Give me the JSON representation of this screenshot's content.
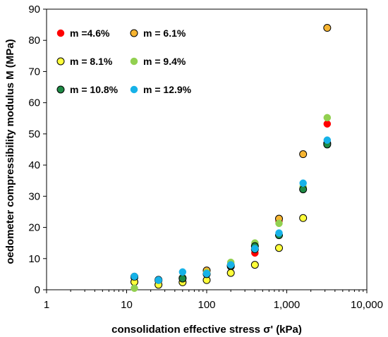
{
  "chart_data": {
    "type": "scatter",
    "xlabel": "consolidation effective stress σ' (kPa)",
    "ylabel": "oedometer compressibility modulus M  (MPa)",
    "x_scale": "log",
    "xlim": [
      1,
      10000
    ],
    "ylim": [
      0,
      90
    ],
    "x_ticks": [
      1,
      10,
      100,
      1000,
      10000
    ],
    "x_tick_labels": [
      "1",
      "10",
      "100",
      "1,000",
      "10,000"
    ],
    "y_ticks": [
      0,
      10,
      20,
      30,
      40,
      50,
      60,
      70,
      80,
      90
    ],
    "y_tick_labels": [
      "0",
      "10",
      "20",
      "30",
      "40",
      "50",
      "60",
      "70",
      "80",
      "90"
    ],
    "grid": false,
    "legend_position": "top-left",
    "series": [
      {
        "name": "m =4.6%",
        "color": "#ff0000",
        "stroke": "#ff0000",
        "x": [
          12.5,
          25,
          50,
          100,
          200,
          400,
          800,
          1600,
          3200
        ],
        "y": [
          4.2,
          3.2,
          3.5,
          5.8,
          8.0,
          11.8,
          22.0,
          32.5,
          53.2
        ]
      },
      {
        "name": "m = 6.1%",
        "color": "#f6b431",
        "stroke": "#000000",
        "x": [
          12.5,
          25,
          50,
          100,
          200,
          400,
          800,
          1600,
          3200
        ],
        "y": [
          4.0,
          3.0,
          3.8,
          6.2,
          7.5,
          13.0,
          22.8,
          43.5,
          84.0
        ]
      },
      {
        "name": "m = 8.1%",
        "color": "#ffff3a",
        "stroke": "#000000",
        "x": [
          12.5,
          25,
          50,
          100,
          200,
          400,
          800,
          1600,
          3200
        ],
        "y": [
          2.5,
          1.6,
          2.4,
          3.1,
          5.4,
          8.0,
          13.4,
          23.0,
          47.0
        ]
      },
      {
        "name": "m = 9.4%",
        "color": "#92d050",
        "stroke": "#92d050",
        "x": [
          12.5,
          25,
          50,
          100,
          200,
          400,
          800,
          1600,
          3200
        ],
        "y": [
          0.5,
          3.0,
          3.8,
          5.5,
          8.8,
          15.0,
          21.3,
          33.0,
          55.2
        ]
      },
      {
        "name": "m = 10.8%",
        "color": "#1e8a45",
        "stroke": "#000000",
        "x": [
          12.5,
          25,
          50,
          100,
          200,
          400,
          800,
          1600,
          3200
        ],
        "y": [
          4.2,
          3.2,
          3.6,
          5.0,
          7.8,
          14.0,
          17.5,
          32.2,
          46.6
        ]
      },
      {
        "name": "m = 12.9%",
        "color": "#16b2e8",
        "stroke": "#16b2e8",
        "x": [
          12.5,
          25,
          50,
          100,
          200,
          400,
          800,
          1600,
          3200
        ],
        "y": [
          4.3,
          3.1,
          5.7,
          5.2,
          8.0,
          13.2,
          18.2,
          34.2,
          48.0
        ]
      }
    ]
  }
}
